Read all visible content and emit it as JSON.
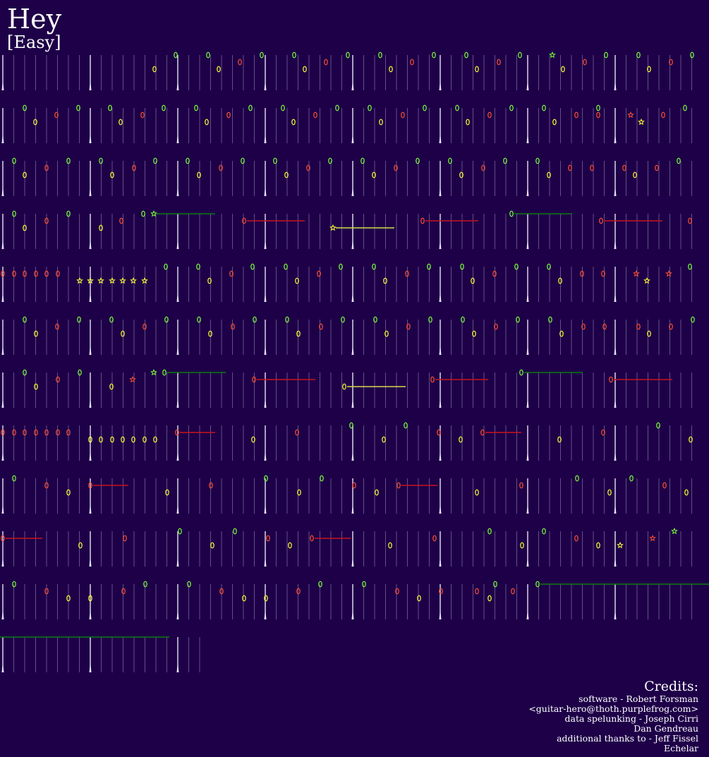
{
  "song": {
    "title": "Hey",
    "difficulty": "[Easy]"
  },
  "colors": {
    "background": "#1e0048",
    "green": "#7cff3a",
    "red": "#ff5030",
    "yellow": "#ffff33",
    "sustain_green": "#0c7a10",
    "sustain_red": "#c8141a",
    "sustain_yellow": "#d8d84a",
    "beat_line": "#d4ccf4",
    "measure_line": "#f2f0ff"
  },
  "credits": {
    "heading": "Credits:",
    "lines": [
      "software - Robert Forsman",
      "<guitar-hero@thoth.purplefrog.com>",
      "data spelunking - Joseph Cirri",
      "Dan Gendreau",
      "additional thanks to - Jeff Fissel",
      "Echelar"
    ]
  }
}
